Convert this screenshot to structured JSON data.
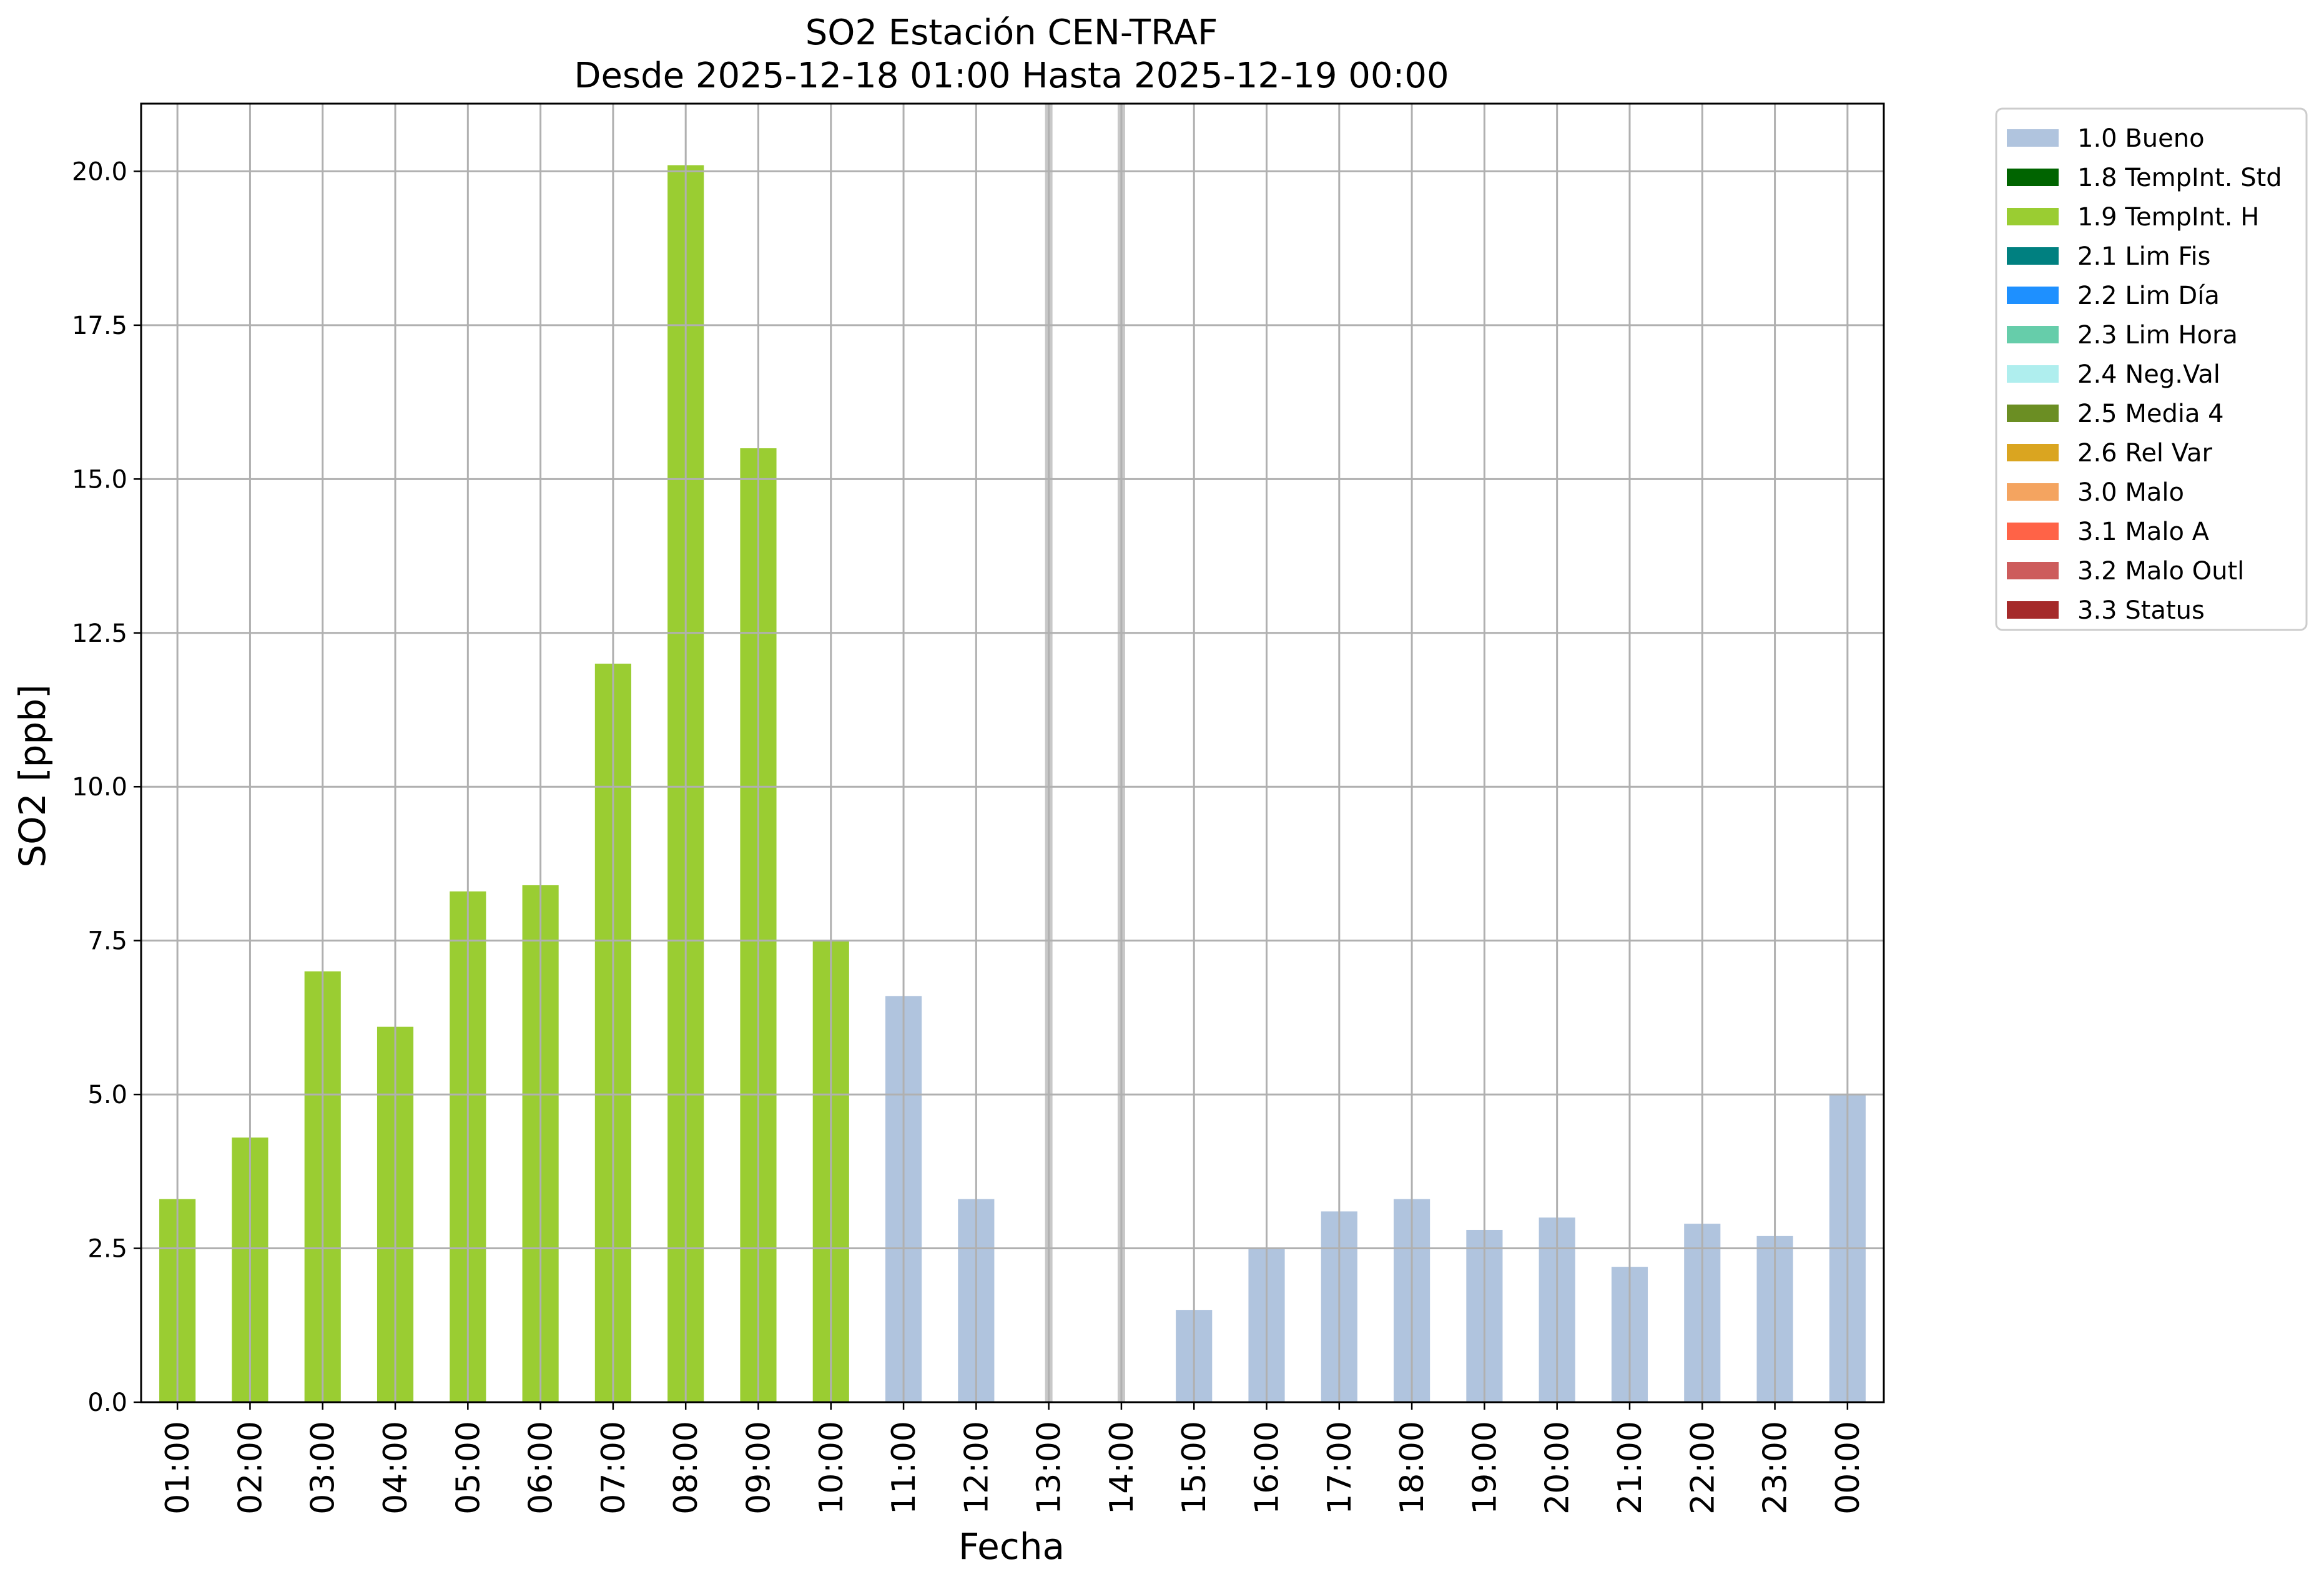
{
  "chart_data": {
    "type": "bar",
    "title": "SO2 Estación CEN-TRAF",
    "subtitle": "Desde 2025-12-18 01:00 Hasta 2025-12-19 00:00",
    "xlabel": "Fecha",
    "ylabel": "SO2 [ppb]",
    "ylim": [
      0,
      21.1
    ],
    "yticks": [
      "0.0",
      "2.5",
      "5.0",
      "7.5",
      "10.0",
      "12.5",
      "15.0",
      "17.5",
      "20.0"
    ],
    "grid": true,
    "legend_position": "outside-top-right",
    "categories": [
      "01:00",
      "02:00",
      "03:00",
      "04:00",
      "05:00",
      "06:00",
      "07:00",
      "08:00",
      "09:00",
      "10:00",
      "11:00",
      "12:00",
      "13:00",
      "14:00",
      "15:00",
      "16:00",
      "17:00",
      "18:00",
      "19:00",
      "20:00",
      "21:00",
      "22:00",
      "23:00",
      "00:00"
    ],
    "values": [
      3.3,
      4.3,
      7.0,
      6.1,
      8.3,
      8.4,
      12.0,
      20.1,
      15.5,
      7.5,
      6.6,
      3.3,
      null,
      null,
      1.5,
      2.5,
      3.1,
      3.3,
      2.8,
      3.0,
      2.2,
      2.9,
      2.7,
      5.0
    ],
    "flags": [
      "1.9",
      "1.9",
      "1.9",
      "1.9",
      "1.9",
      "1.9",
      "1.9",
      "1.9",
      "1.9",
      "1.9",
      "1.0",
      "1.0",
      null,
      null,
      "1.0",
      "1.0",
      "1.0",
      "1.0",
      "1.0",
      "1.0",
      "1.0",
      "1.0",
      "1.0",
      "1.0"
    ],
    "legend": [
      {
        "code": "1.0",
        "label": "1.0 Bueno",
        "color": "#b0c4de"
      },
      {
        "code": "1.8",
        "label": "1.8 TempInt. Std",
        "color": "#006400"
      },
      {
        "code": "1.9",
        "label": "1.9 TempInt. H",
        "color": "#9acd32"
      },
      {
        "code": "2.1",
        "label": "2.1 Lim Fis",
        "color": "#008080"
      },
      {
        "code": "2.2",
        "label": "2.2 Lim Día",
        "color": "#1e90ff"
      },
      {
        "code": "2.3",
        "label": "2.3 Lim Hora",
        "color": "#66cdaa"
      },
      {
        "code": "2.4",
        "label": "2.4 Neg.Val",
        "color": "#afeeee"
      },
      {
        "code": "2.5",
        "label": "2.5 Media 4",
        "color": "#6b8e23"
      },
      {
        "code": "2.6",
        "label": "2.6 Rel Var",
        "color": "#daa520"
      },
      {
        "code": "3.0",
        "label": "3.0 Malo",
        "color": "#f4a460"
      },
      {
        "code": "3.1",
        "label": "3.1 Malo A",
        "color": "#ff6347"
      },
      {
        "code": "3.2",
        "label": "3.2 Malo Outl",
        "color": "#cd5c5c"
      },
      {
        "code": "3.3",
        "label": "3.3 Status",
        "color": "#a52a2a"
      }
    ],
    "missing_marker_color": "#c8c8c8"
  }
}
